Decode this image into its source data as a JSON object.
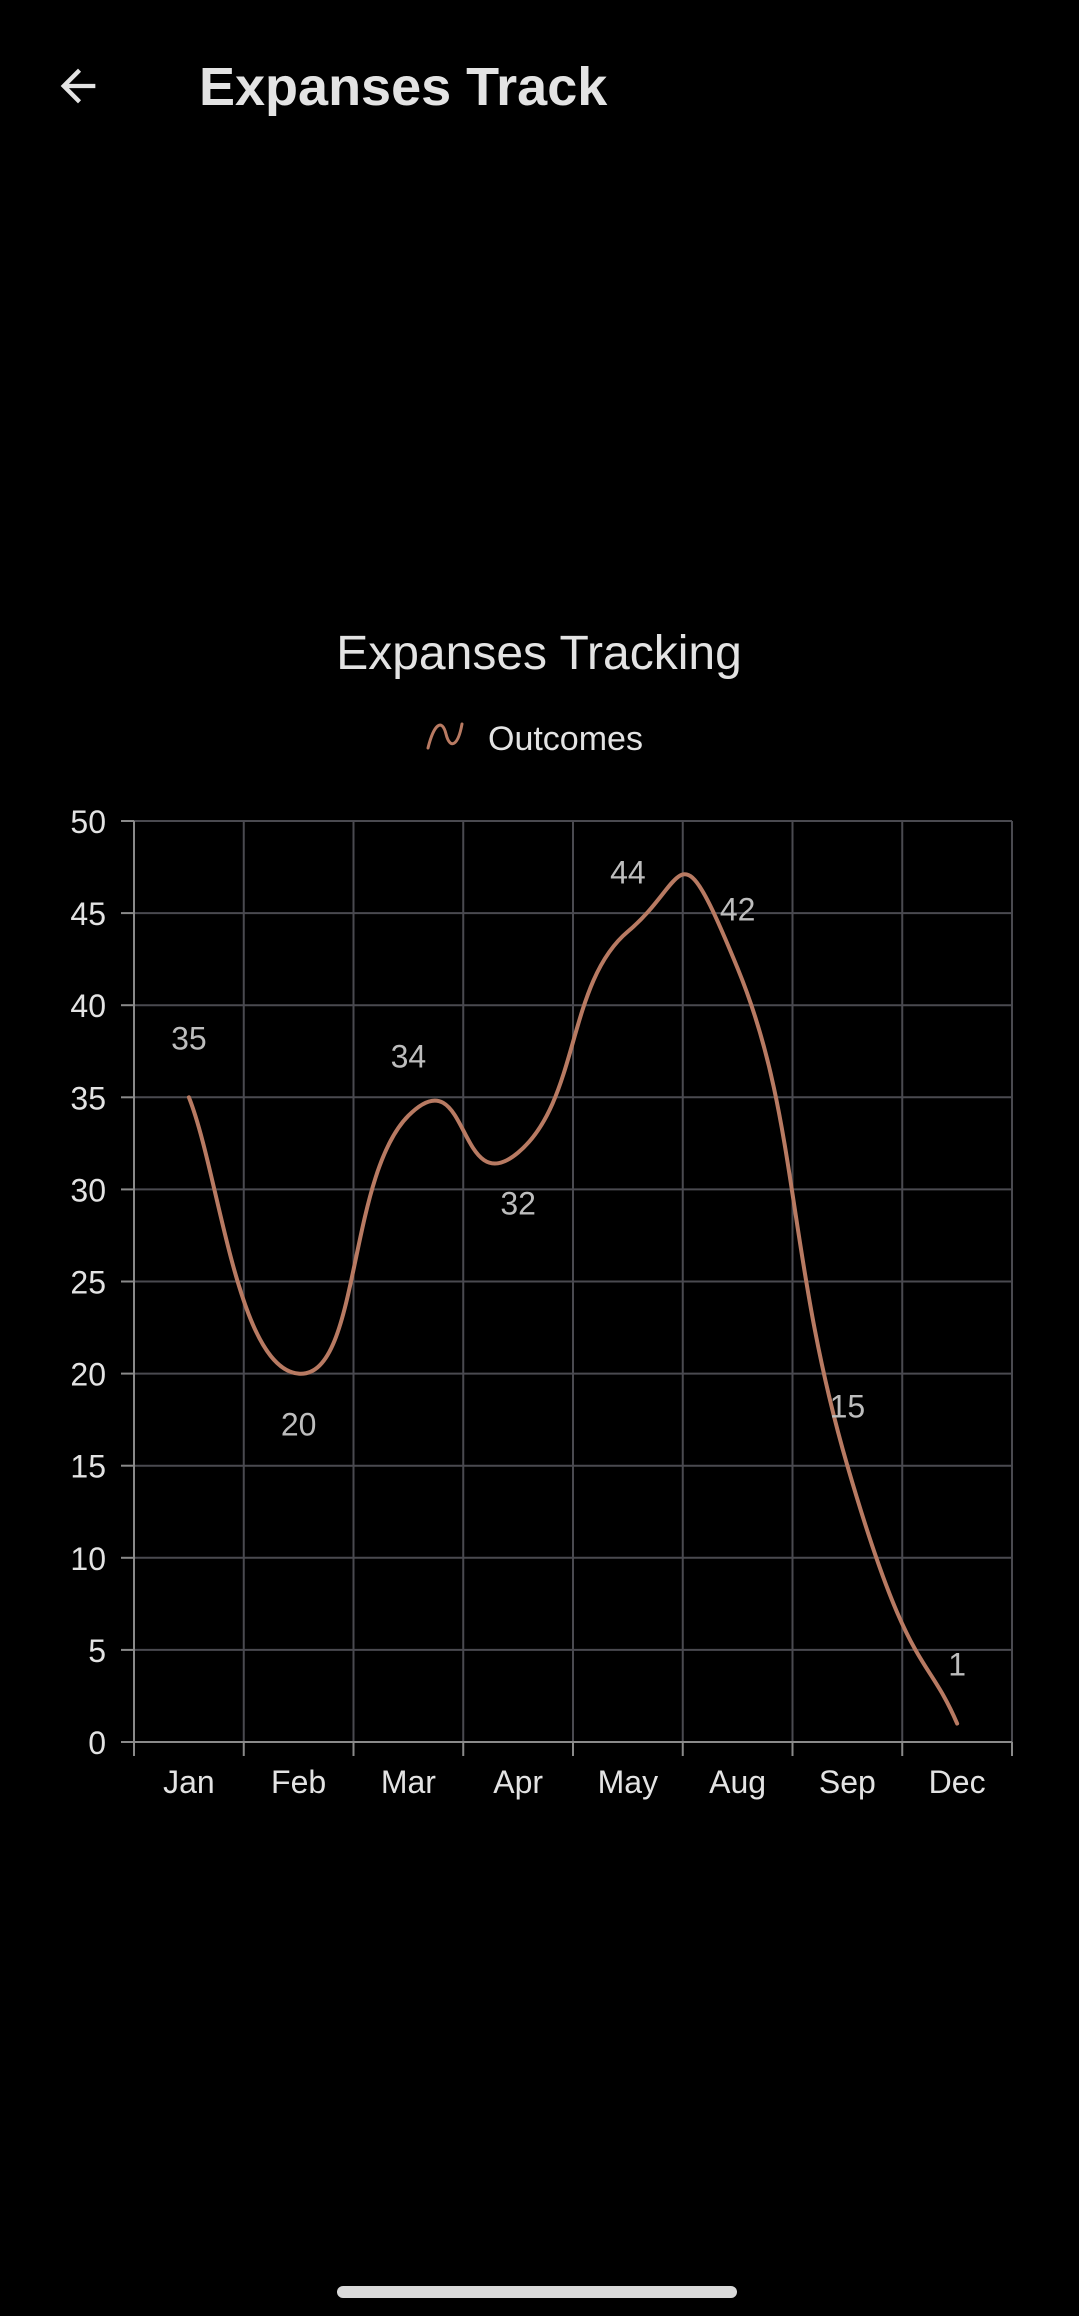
{
  "app_bar": {
    "title": "Expanses Track",
    "back_icon": "arrow-left-icon"
  },
  "colors": {
    "background": "#000000",
    "text": "#e3e3e3",
    "grid": "#4a4a50",
    "axis": "#8a8a8a",
    "series": "#b87a62"
  },
  "chart_data": {
    "type": "line",
    "title": "Expanses Tracking",
    "legend_position": "top-center",
    "legend_icon": "curve-line-icon",
    "categories": [
      "Jan",
      "Feb",
      "Mar",
      "Apr",
      "May",
      "Aug",
      "Sep",
      "Dec"
    ],
    "series": [
      {
        "name": "Outcomes",
        "values": [
          35,
          20,
          34,
          32,
          44,
          42,
          15,
          1
        ]
      }
    ],
    "ylim": [
      0,
      50
    ],
    "yticks": [
      0,
      5,
      10,
      15,
      20,
      25,
      30,
      35,
      40,
      45,
      50
    ],
    "grid": true,
    "smooth": true
  }
}
